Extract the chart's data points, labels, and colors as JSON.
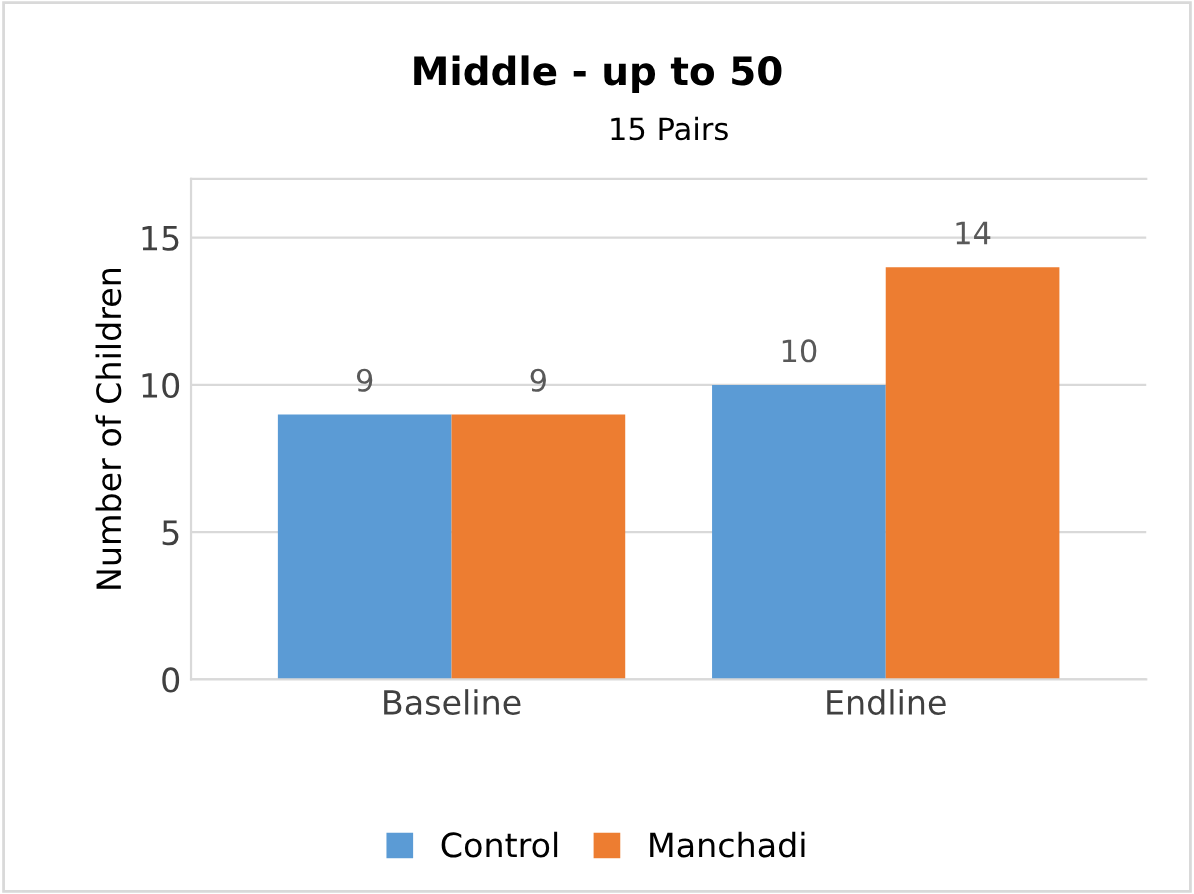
{
  "chart_data": {
    "type": "bar",
    "title": "Middle - up to 50",
    "subtitle": "15 Pairs",
    "ylabel": "Number of Children",
    "categories": [
      "Baseline",
      "Endline"
    ],
    "series": [
      {
        "name": "Control",
        "color": "#5b9bd5",
        "values": [
          9,
          10
        ]
      },
      {
        "name": "Manchadi",
        "color": "#ed7d31",
        "values": [
          9,
          14
        ]
      }
    ],
    "ylim": [
      0,
      17
    ],
    "yticks": [
      0,
      5,
      10,
      15
    ],
    "grid": "y",
    "legend": "bottom",
    "data_labels": true
  }
}
